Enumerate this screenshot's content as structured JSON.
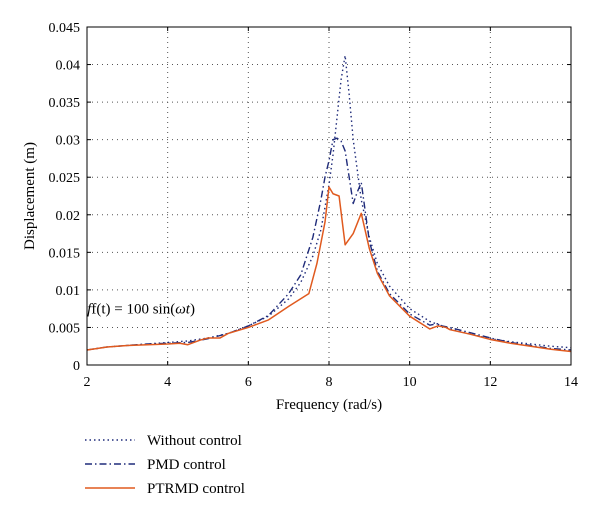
{
  "chart_data": {
    "type": "line",
    "xlabel": "Frequency (rad/s)",
    "ylabel": "Displacement (m)",
    "xlim": [
      2,
      14
    ],
    "ylim": [
      0,
      0.045
    ],
    "xticks": [
      2,
      4,
      6,
      8,
      10,
      12,
      14
    ],
    "yticks": [
      0,
      0.005,
      0.01,
      0.015,
      0.02,
      0.025,
      0.03,
      0.035,
      0.04,
      0.045
    ],
    "ytick_labels": [
      "0",
      "0.005",
      "0.01",
      "0.015",
      "0.02",
      "0.025",
      "0.03",
      "0.035",
      "0.04",
      "0.045"
    ],
    "grid": true,
    "legend_placement": "bottom",
    "annotation": {
      "pre": "f(t) = 100 sin(",
      "omega": "ω",
      "t": "t",
      "post": ")",
      "x": 2.5,
      "y": 0.0075
    },
    "series": [
      {
        "name": "Without control",
        "color": "#1f2b7a",
        "style": "dotted",
        "x": [
          2,
          2.5,
          3,
          3.5,
          4,
          4.5,
          5,
          5.5,
          6,
          6.5,
          7,
          7.3,
          7.6,
          7.8,
          8,
          8.1,
          8.2,
          8.3,
          8.4,
          8.5,
          8.6,
          8.8,
          9,
          9.2,
          9.5,
          10,
          10.5,
          11,
          11.5,
          12,
          12.5,
          13,
          13.5,
          14
        ],
        "y": [
          0.002,
          0.0024,
          0.0026,
          0.0028,
          0.003,
          0.0032,
          0.0036,
          0.0042,
          0.0052,
          0.0065,
          0.0088,
          0.011,
          0.0145,
          0.018,
          0.024,
          0.028,
          0.033,
          0.038,
          0.0412,
          0.036,
          0.03,
          0.022,
          0.017,
          0.0135,
          0.0105,
          0.0075,
          0.0058,
          0.0048,
          0.0041,
          0.0035,
          0.0031,
          0.0028,
          0.0025,
          0.0023
        ]
      },
      {
        "name": "PMD control",
        "color": "#1f2b7a",
        "style": "dashdot",
        "x": [
          2,
          2.5,
          3,
          3.5,
          4,
          4.5,
          5,
          5.5,
          6,
          6.5,
          7,
          7.3,
          7.6,
          7.8,
          7.9,
          8,
          8.1,
          8.2,
          8.3,
          8.4,
          8.5,
          8.6,
          8.7,
          8.8,
          9,
          9.2,
          9.5,
          10,
          10.5,
          10.7,
          10.8,
          11,
          11.5,
          12,
          12.5,
          13,
          13.5,
          14
        ],
        "y": [
          0.002,
          0.0024,
          0.0026,
          0.0028,
          0.0029,
          0.003,
          0.0035,
          0.0042,
          0.0052,
          0.0066,
          0.0095,
          0.012,
          0.017,
          0.022,
          0.025,
          0.0272,
          0.03,
          0.0302,
          0.0298,
          0.0285,
          0.025,
          0.0215,
          0.023,
          0.0243,
          0.0165,
          0.0125,
          0.0095,
          0.0068,
          0.0053,
          0.0055,
          0.0052,
          0.005,
          0.0043,
          0.0036,
          0.003,
          0.0026,
          0.0022,
          0.002
        ]
      },
      {
        "name": "PTRMD control",
        "color": "#e05a1f",
        "style": "solid",
        "x": [
          2,
          2.5,
          3,
          3.5,
          4,
          4.3,
          4.5,
          4.8,
          5,
          5.3,
          5.5,
          6,
          6.5,
          7,
          7.5,
          7.7,
          7.9,
          8,
          8.1,
          8.25,
          8.4,
          8.6,
          8.8,
          9,
          9.2,
          9.5,
          10,
          10.5,
          10.7,
          10.9,
          11,
          11.5,
          12,
          12.5,
          13,
          13.5,
          14
        ],
        "y": [
          0.002,
          0.0024,
          0.0026,
          0.0027,
          0.0028,
          0.0029,
          0.0027,
          0.0033,
          0.0036,
          0.0036,
          0.0042,
          0.005,
          0.006,
          0.0078,
          0.0095,
          0.0135,
          0.019,
          0.0237,
          0.0228,
          0.0225,
          0.016,
          0.0175,
          0.0202,
          0.0155,
          0.0122,
          0.0092,
          0.0065,
          0.0048,
          0.0052,
          0.005,
          0.0047,
          0.0041,
          0.0034,
          0.0029,
          0.0025,
          0.0021,
          0.0018
        ]
      }
    ]
  }
}
